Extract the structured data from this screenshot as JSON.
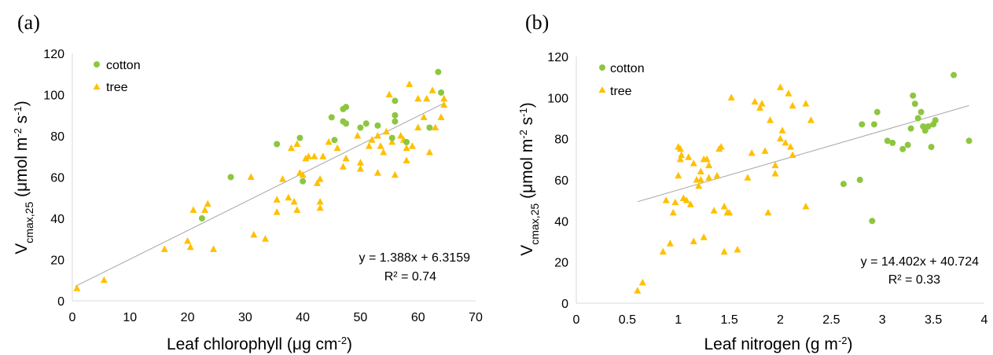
{
  "colors": {
    "cotton": "#8dc63f",
    "tree": "#ffc000",
    "trend": "#a6a6a6",
    "axis": "#d9d9d9"
  },
  "chart_data": [
    {
      "type": "scatter",
      "panel": "(a)",
      "title": "",
      "xlabel": "Leaf chlorophyll (μg cm",
      "xlabel_sup": "-2",
      "xlabel_end": ")",
      "ylabel": "V",
      "ylabel_sub": "cmax,25",
      "ylabel_mid": " (μmol m",
      "ylabel_sup1": "-2",
      "ylabel_mid2": " s",
      "ylabel_sup2": "-1",
      "ylabel_end": ")",
      "xlim": [
        0,
        70
      ],
      "ylim": [
        0,
        120
      ],
      "x_ticks": [
        "0",
        "10",
        "20",
        "30",
        "40",
        "50",
        "60",
        "70"
      ],
      "y_ticks": [
        "0",
        "20",
        "40",
        "60",
        "80",
        "100",
        "120"
      ],
      "legend": [
        "cotton",
        "tree"
      ],
      "legend_position": "top-left",
      "grid": false,
      "equation": "y = 1.388x + 6.3159",
      "r2": "R² = 0.74",
      "trendline": {
        "slope": 1.388,
        "intercept": 6.3159,
        "x_range": [
          0.5,
          64.5
        ]
      },
      "series": [
        {
          "name": "cotton",
          "marker": "circle",
          "points": [
            [
              22.5,
              40
            ],
            [
              27.5,
              60
            ],
            [
              35.5,
              76
            ],
            [
              39.5,
              79
            ],
            [
              40,
              58
            ],
            [
              45,
              89
            ],
            [
              45.5,
              78
            ],
            [
              47,
              87
            ],
            [
              47,
              93
            ],
            [
              47.5,
              94
            ],
            [
              47.5,
              86
            ],
            [
              50,
              84
            ],
            [
              51,
              86
            ],
            [
              53,
              85
            ],
            [
              55.5,
              79
            ],
            [
              56,
              87
            ],
            [
              56,
              90
            ],
            [
              58,
              77
            ],
            [
              56,
              97
            ],
            [
              62,
              84
            ],
            [
              63.5,
              111
            ],
            [
              64,
              101
            ]
          ]
        },
        {
          "name": "tree",
          "marker": "triangle",
          "points": [
            [
              0.8,
              6
            ],
            [
              5.5,
              10
            ],
            [
              16,
              25
            ],
            [
              20,
              29
            ],
            [
              20.5,
              26
            ],
            [
              21,
              44
            ],
            [
              23,
              44
            ],
            [
              23.5,
              47
            ],
            [
              24.5,
              25
            ],
            [
              31,
              60
            ],
            [
              31.5,
              32
            ],
            [
              33.5,
              30
            ],
            [
              35.5,
              49
            ],
            [
              35.5,
              43
            ],
            [
              36.5,
              59
            ],
            [
              37.5,
              50
            ],
            [
              38,
              74
            ],
            [
              38.5,
              48
            ],
            [
              39,
              76
            ],
            [
              39,
              44
            ],
            [
              39.5,
              62
            ],
            [
              40,
              61
            ],
            [
              40.5,
              69
            ],
            [
              41,
              70
            ],
            [
              42,
              70
            ],
            [
              42.5,
              57
            ],
            [
              43,
              59
            ],
            [
              43,
              48
            ],
            [
              43,
              45
            ],
            [
              43.5,
              70
            ],
            [
              44.5,
              77
            ],
            [
              46,
              74
            ],
            [
              47,
              65
            ],
            [
              47.5,
              69
            ],
            [
              49.5,
              80
            ],
            [
              50,
              67
            ],
            [
              50,
              64
            ],
            [
              51.5,
              75
            ],
            [
              52,
              78
            ],
            [
              53,
              62
            ],
            [
              53,
              80
            ],
            [
              53.5,
              75
            ],
            [
              54,
              72
            ],
            [
              54.5,
              82
            ],
            [
              55,
              100
            ],
            [
              55.5,
              77
            ],
            [
              56,
              61
            ],
            [
              57,
              80
            ],
            [
              57.5,
              78
            ],
            [
              58,
              68
            ],
            [
              58,
              74
            ],
            [
              58.5,
              105
            ],
            [
              59,
              75
            ],
            [
              60,
              98
            ],
            [
              60,
              84
            ],
            [
              61,
              89
            ],
            [
              61.5,
              98
            ],
            [
              62,
              72
            ],
            [
              62.5,
              102
            ],
            [
              63,
              84
            ],
            [
              64,
              89
            ],
            [
              64.5,
              95
            ],
            [
              64.5,
              98
            ]
          ]
        }
      ]
    },
    {
      "type": "scatter",
      "panel": "(b)",
      "title": "",
      "xlabel": "Leaf nitrogen (g m",
      "xlabel_sup": "-2",
      "xlabel_end": ")",
      "ylabel": "V",
      "ylabel_sub": "cmax,25",
      "ylabel_mid": " (μmol m",
      "ylabel_sup1": "-2",
      "ylabel_mid2": " s",
      "ylabel_sup2": "-1",
      "ylabel_end": ")",
      "xlim": [
        0,
        4
      ],
      "ylim": [
        0,
        120
      ],
      "x_ticks": [
        "0",
        "0.5",
        "1",
        "1.5",
        "2",
        "2.5",
        "3",
        "3.5",
        "4"
      ],
      "y_ticks": [
        "0",
        "20",
        "40",
        "60",
        "80",
        "100",
        "120"
      ],
      "legend": [
        "cotton",
        "tree"
      ],
      "legend_position": "top-left",
      "grid": false,
      "equation": "y = 14.402x + 40.724",
      "r2": "R² = 0.33",
      "trendline": {
        "slope": 14.402,
        "intercept": 40.724,
        "x_range": [
          0.6,
          3.85
        ]
      },
      "series": [
        {
          "name": "cotton",
          "marker": "circle",
          "points": [
            [
              2.62,
              58
            ],
            [
              2.78,
              60
            ],
            [
              2.8,
              87
            ],
            [
              2.9,
              40
            ],
            [
              2.92,
              87
            ],
            [
              2.95,
              93
            ],
            [
              3.05,
              79
            ],
            [
              3.1,
              78
            ],
            [
              3.2,
              75
            ],
            [
              3.25,
              77
            ],
            [
              3.28,
              85
            ],
            [
              3.3,
              101
            ],
            [
              3.32,
              97
            ],
            [
              3.35,
              90
            ],
            [
              3.38,
              93
            ],
            [
              3.4,
              86
            ],
            [
              3.42,
              84
            ],
            [
              3.45,
              86
            ],
            [
              3.48,
              76
            ],
            [
              3.5,
              87
            ],
            [
              3.52,
              89
            ],
            [
              3.7,
              111
            ],
            [
              3.85,
              79
            ]
          ]
        },
        {
          "name": "tree",
          "marker": "triangle",
          "points": [
            [
              0.6,
              6
            ],
            [
              0.65,
              10
            ],
            [
              0.85,
              25
            ],
            [
              0.88,
              50
            ],
            [
              0.92,
              29
            ],
            [
              0.95,
              44
            ],
            [
              0.97,
              49
            ],
            [
              1.0,
              76
            ],
            [
              1.0,
              62
            ],
            [
              1.02,
              75
            ],
            [
              1.02,
              70
            ],
            [
              1.03,
              72
            ],
            [
              1.05,
              51
            ],
            [
              1.08,
              50
            ],
            [
              1.1,
              71
            ],
            [
              1.12,
              48
            ],
            [
              1.15,
              68
            ],
            [
              1.15,
              30
            ],
            [
              1.18,
              60
            ],
            [
              1.2,
              57
            ],
            [
              1.22,
              64
            ],
            [
              1.22,
              60
            ],
            [
              1.25,
              70
            ],
            [
              1.25,
              32
            ],
            [
              1.28,
              70
            ],
            [
              1.3,
              67
            ],
            [
              1.3,
              61
            ],
            [
              1.35,
              45
            ],
            [
              1.38,
              62
            ],
            [
              1.4,
              75
            ],
            [
              1.42,
              76
            ],
            [
              1.45,
              47
            ],
            [
              1.45,
              25
            ],
            [
              1.48,
              44
            ],
            [
              1.5,
              44
            ],
            [
              1.52,
              100
            ],
            [
              1.58,
              26
            ],
            [
              1.68,
              61
            ],
            [
              1.72,
              73
            ],
            [
              1.75,
              98
            ],
            [
              1.8,
              95
            ],
            [
              1.82,
              97
            ],
            [
              1.85,
              74
            ],
            [
              1.88,
              44
            ],
            [
              1.9,
              89
            ],
            [
              1.95,
              67
            ],
            [
              1.95,
              63
            ],
            [
              2.0,
              80
            ],
            [
              2.0,
              105
            ],
            [
              2.02,
              84
            ],
            [
              2.05,
              78
            ],
            [
              2.08,
              102
            ],
            [
              2.1,
              76
            ],
            [
              2.12,
              72
            ],
            [
              2.12,
              96
            ],
            [
              2.25,
              97
            ],
            [
              2.25,
              47
            ],
            [
              2.3,
              89
            ]
          ]
        }
      ]
    }
  ]
}
